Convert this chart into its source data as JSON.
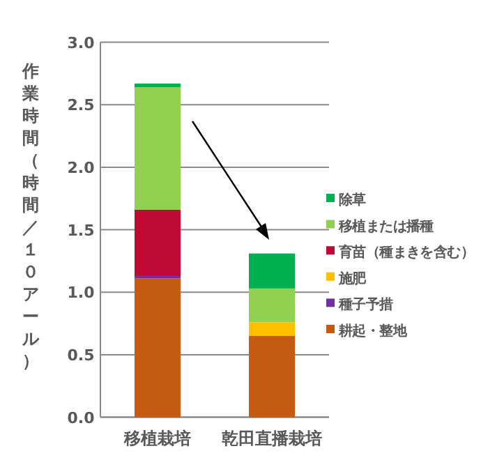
{
  "chart_data": {
    "type": "bar",
    "stacked": true,
    "ylabel": "作業時間（時間／１０アール）",
    "categories": [
      "移植栽培",
      "乾田直播栽培"
    ],
    "ylim": [
      0,
      3
    ],
    "yticks": [
      {
        "value": 0,
        "label": "0.0"
      },
      {
        "value": 0.5,
        "label": "0.5"
      },
      {
        "value": 1,
        "label": "1.0"
      },
      {
        "value": 1.5,
        "label": "1.5"
      },
      {
        "value": 2,
        "label": "2.0"
      },
      {
        "value": 2.5,
        "label": "2.5"
      },
      {
        "value": 3,
        "label": "3.0"
      }
    ],
    "grid": "y",
    "legend": "right",
    "series": [
      {
        "name": "耕起・整地",
        "color": "#c55a11",
        "values": [
          1.11,
          0.65
        ]
      },
      {
        "name": "種子予措",
        "color": "#7030a0",
        "values": [
          0.02,
          null
        ]
      },
      {
        "name": "施肥",
        "color": "#ffc000",
        "values": [
          null,
          0.11
        ]
      },
      {
        "name": "育苗（種まきを含む）",
        "color": "#be0a32",
        "values": [
          0.53,
          null
        ]
      },
      {
        "name": "移植または播種",
        "color": "#92d050",
        "values": [
          0.98,
          0.27
        ]
      },
      {
        "name": "除草",
        "color": "#00b050",
        "values": [
          0.03,
          0.28
        ]
      }
    ]
  }
}
